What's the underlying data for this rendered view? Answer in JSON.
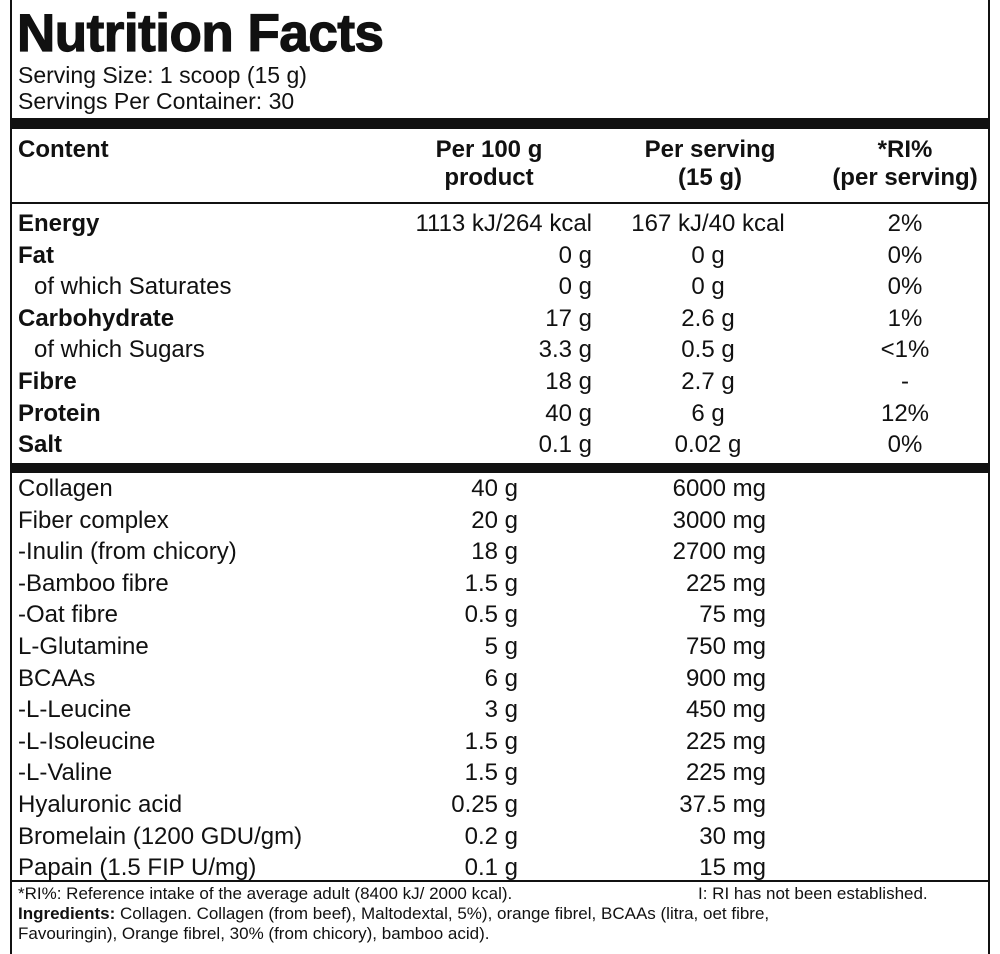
{
  "title": "Nutrition Facts",
  "serving_size": "Serving Size: 1 scoop (15 g)",
  "servings_per_container": "Servings Per Container: 30",
  "headers": {
    "content": "Content",
    "per100_line1": "Per 100 g",
    "per100_line2": "product",
    "perserv_line1": "Per serving",
    "perserv_line2": "(15 g)",
    "ri_line1": "*RI%",
    "ri_line2": "(per serving)"
  },
  "nutrients": [
    {
      "name": "Energy",
      "per100": "1113 kJ/264 kcal",
      "perserv": "167 kJ/40 kcal",
      "ri": "2%"
    },
    {
      "name": "Fat",
      "per100": "0 g",
      "perserv": "0 g",
      "ri": "0%"
    },
    {
      "name": "of which Saturates",
      "per100": "0 g",
      "perserv": "0 g",
      "ri": "0%"
    },
    {
      "name": "Carbohydrate",
      "per100": "17 g",
      "perserv": "2.6 g",
      "ri": "1%"
    },
    {
      "name": "of which Sugars",
      "per100": "3.3 g",
      "perserv": "0.5 g",
      "ri": "<1%"
    },
    {
      "name": "Fibre",
      "per100": "18 g",
      "perserv": "2.7 g",
      "ri": "-"
    },
    {
      "name": "Protein",
      "per100": "40 g",
      "perserv": "6 g",
      "ri": "12%"
    },
    {
      "name": "Salt",
      "per100": "0.1 g",
      "perserv": "0.02 g",
      "ri": "0%"
    }
  ],
  "ingredients_table": [
    {
      "name": "Collagen",
      "per100": "40 g",
      "perserv": "6000 mg"
    },
    {
      "name": "Fiber complex",
      "per100": "20 g",
      "perserv": "3000 mg"
    },
    {
      "name": "-Inulin (from chicory)",
      "per100": "18 g",
      "perserv": "2700 mg"
    },
    {
      "name": "-Bamboo fibre",
      "per100": "1.5 g",
      "perserv": "225 mg"
    },
    {
      "name": "-Oat fibre",
      "per100": "0.5 g",
      "perserv": "75 mg"
    },
    {
      "name": "L-Glutamine",
      "per100": "5 g",
      "perserv": "750 mg"
    },
    {
      "name": "BCAAs",
      "per100": "6 g",
      "perserv": "900 mg"
    },
    {
      "name": "-L-Leucine",
      "per100": "3 g",
      "perserv": "450 mg"
    },
    {
      "name": "-L-Isoleucine",
      "per100": "1.5 g",
      "perserv": "225 mg"
    },
    {
      "name": "-L-Valine",
      "per100": "1.5 g",
      "perserv": "225 mg"
    },
    {
      "name": "Hyaluronic acid",
      "per100": "0.25 g",
      "perserv": "37.5 mg"
    },
    {
      "name": "Bromelain (1200 GDU/gm)",
      "per100": "0.2 g",
      "perserv": "30 mg"
    },
    {
      "name": "Papain (1.5 FIP U/mg)",
      "per100": "0.1 g",
      "perserv": "15 mg"
    }
  ],
  "footer": {
    "ri_note": "*RI%: Reference intake of the average adult (8400 kJ/ 2000 kcal).",
    "ri_note2": "I: RI has not been established.",
    "ingredients_label": "Ingredients:",
    "ingredients_text1": " Collagen. Collagen (from beef), Maltodextal, 5%), orange fibrel, BCAAs (litra, oet fibre,",
    "ingredients_text2": "Favouringin), Orange fibrel, 30% (from chicory), bamboo acid)."
  }
}
